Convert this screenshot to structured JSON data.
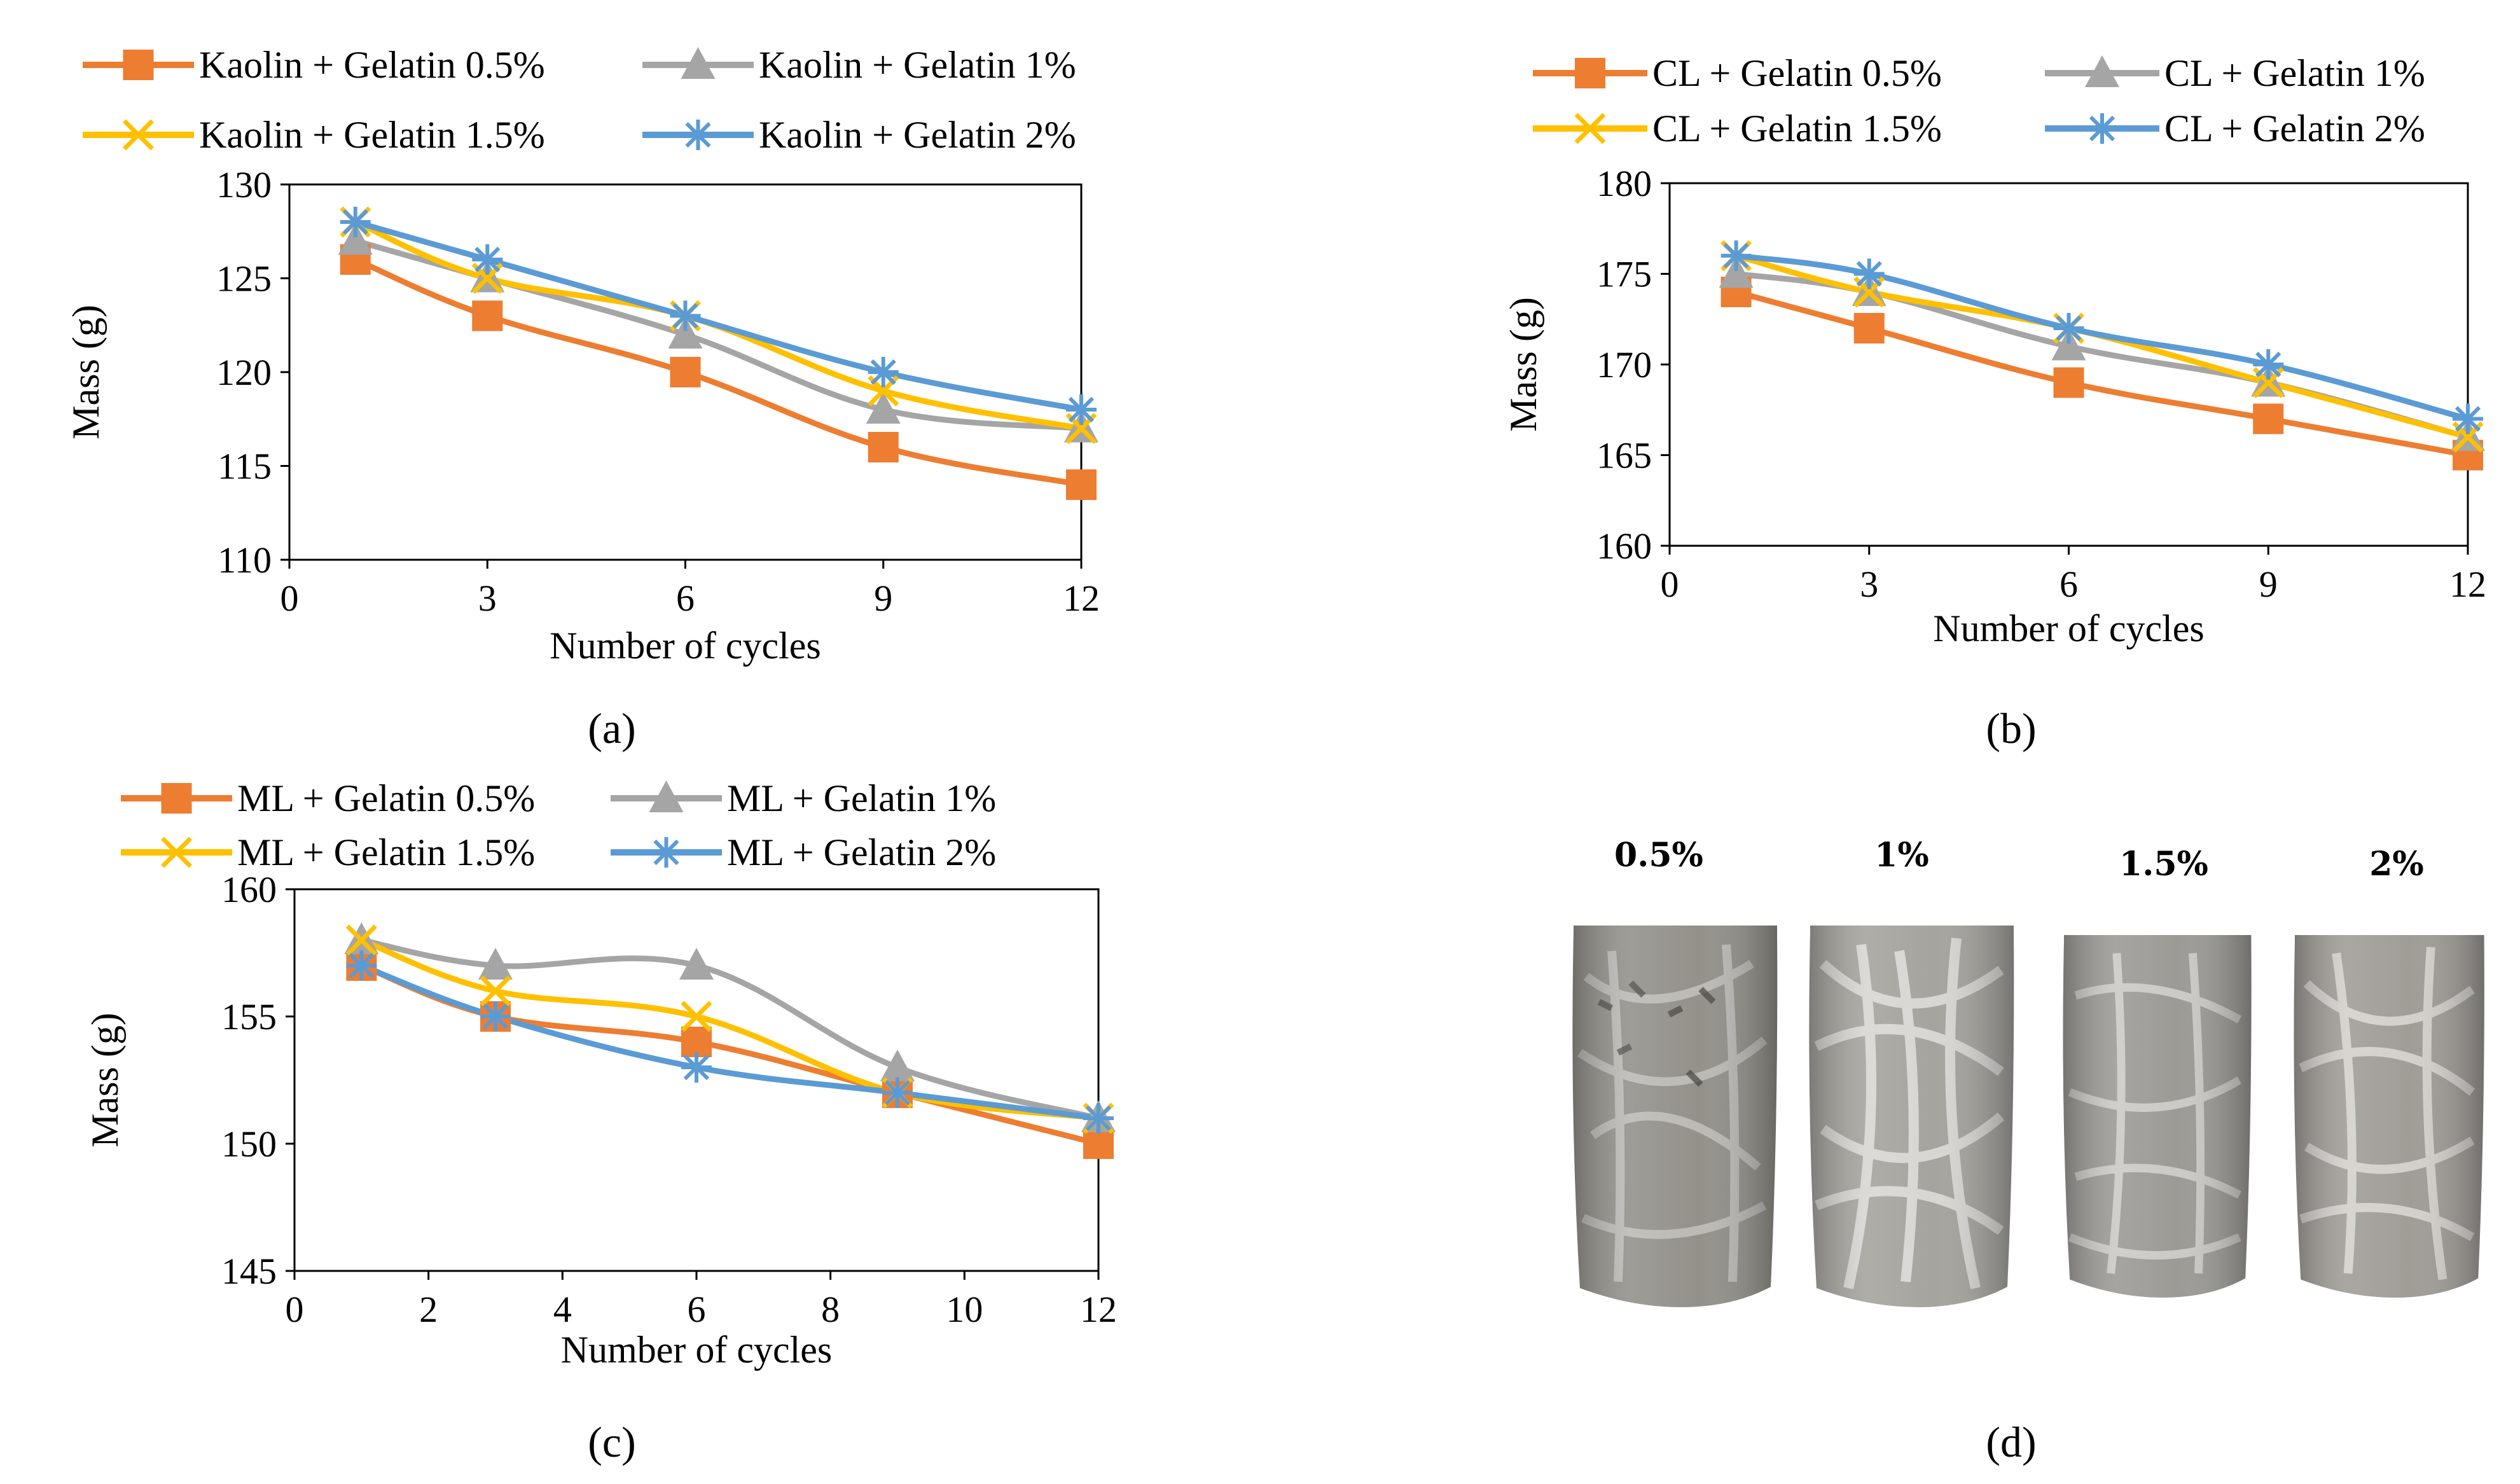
{
  "figure": {
    "panel_labels": [
      "(a)",
      "(b)",
      "(c)",
      "(d)"
    ]
  },
  "chart_data": [
    {
      "id": "a",
      "type": "line",
      "x": [
        1,
        3,
        6,
        9,
        12
      ],
      "xlim": [
        0,
        12
      ],
      "xticks": [
        "0",
        "3",
        "6",
        "9",
        "12"
      ],
      "ylim": [
        110,
        130
      ],
      "yticks": [
        "110",
        "115",
        "120",
        "125",
        "130"
      ],
      "xlabel": "Number of cycles",
      "ylabel": "Mass (g)",
      "series": [
        {
          "name": "Kaolin + Gelatin 0.5%",
          "values": [
            126,
            123,
            120,
            116,
            114
          ],
          "color": "#ED7D31",
          "marker": "square"
        },
        {
          "name": "Kaolin + Gelatin 1%",
          "values": [
            127,
            125,
            122,
            118,
            117
          ],
          "color": "#A5A5A5",
          "marker": "triangle"
        },
        {
          "name": "Kaolin + Gelatin 1.5%",
          "values": [
            128,
            125,
            123,
            119,
            117
          ],
          "color": "#FFC000",
          "marker": "x"
        },
        {
          "name": "Kaolin + Gelatin 2%",
          "values": [
            128,
            126,
            123,
            120,
            118
          ],
          "color": "#5B9BD5",
          "marker": "star"
        }
      ]
    },
    {
      "id": "b",
      "type": "line",
      "x": [
        1,
        3,
        6,
        9,
        12
      ],
      "xlim": [
        0,
        12
      ],
      "xticks": [
        "0",
        "3",
        "6",
        "9",
        "12"
      ],
      "ylim": [
        160,
        180
      ],
      "yticks": [
        "160",
        "165",
        "170",
        "175",
        "180"
      ],
      "xlabel": "Number of cycles",
      "ylabel": "Mass (g)",
      "series": [
        {
          "name": "CL + Gelatin 0.5%",
          "values": [
            174,
            172,
            169,
            167,
            165
          ],
          "color": "#ED7D31",
          "marker": "square"
        },
        {
          "name": "CL + Gelatin 1%",
          "values": [
            175,
            174,
            171,
            169,
            166
          ],
          "color": "#A5A5A5",
          "marker": "triangle"
        },
        {
          "name": "CL + Gelatin 1.5%",
          "values": [
            176,
            174,
            172,
            169,
            166
          ],
          "color": "#FFC000",
          "marker": "x"
        },
        {
          "name": "CL + Gelatin 2%",
          "values": [
            176,
            175,
            172,
            170,
            167
          ],
          "color": "#5B9BD5",
          "marker": "star"
        }
      ]
    },
    {
      "id": "c",
      "type": "line",
      "x": [
        1,
        3,
        6,
        9,
        12
      ],
      "xlim": [
        0,
        12
      ],
      "xticks": [
        "0",
        "2",
        "4",
        "6",
        "8",
        "10",
        "12"
      ],
      "ylim": [
        145,
        160
      ],
      "yticks": [
        "145",
        "150",
        "155",
        "160"
      ],
      "xlabel": "Number of cycles",
      "ylabel": "Mass (g)",
      "series": [
        {
          "name": "ML + Gelatin 0.5%",
          "values": [
            157,
            155,
            154,
            152,
            150
          ],
          "color": "#ED7D31",
          "marker": "square"
        },
        {
          "name": "ML + Gelatin 1%",
          "values": [
            158,
            157,
            157,
            153,
            151
          ],
          "color": "#A5A5A5",
          "marker": "triangle"
        },
        {
          "name": "ML + Gelatin 1.5%",
          "values": [
            158,
            156,
            155,
            152,
            151
          ],
          "color": "#FFC000",
          "marker": "x"
        },
        {
          "name": "ML + Gelatin 2%",
          "values": [
            157,
            155,
            153,
            152,
            151
          ],
          "color": "#5B9BD5",
          "marker": "star"
        }
      ]
    }
  ],
  "photo": {
    "samples": [
      {
        "label": "0.5%",
        "color": "#8d8b84"
      },
      {
        "label": "1%",
        "color": "#a09f99"
      },
      {
        "label": "1.5%",
        "color": "#969590"
      },
      {
        "label": "2%",
        "color": "#9b9892"
      }
    ]
  }
}
